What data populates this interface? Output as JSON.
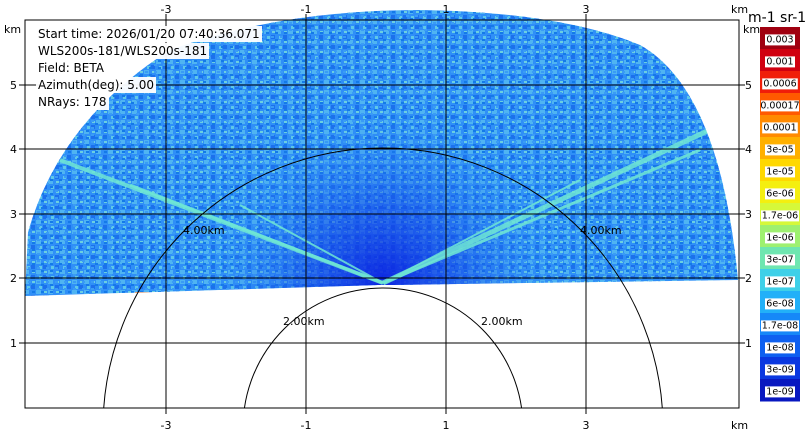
{
  "info": {
    "start_time": "Start time: 2026/01/20 07:40:36.071",
    "instrument": "WLS200s-181/WLS200s-181",
    "field": "Field: BETA",
    "azimuth": "Azimuth(deg): 5.00",
    "nrays": "NRays: 178"
  },
  "axes": {
    "x_unit": "km",
    "y_unit": "km",
    "x_ticks": [
      "-3",
      "-1",
      "1",
      "3"
    ],
    "y_ticks": [
      "1",
      "2",
      "3",
      "4",
      "5"
    ],
    "range_rings": [
      "2.00km",
      "4.00km"
    ]
  },
  "colorbar": {
    "unit_label": "m-1 sr-1",
    "labels": [
      "0.003",
      "0.001",
      "0.0006",
      "0.00017",
      "0.0001",
      "3e-05",
      "1e-05",
      "6e-06",
      "1.7e-06",
      "1e-06",
      "3e-07",
      "1e-07",
      "6e-08",
      "1.7e-08",
      "1e-08",
      "3e-09",
      "1e-09"
    ]
  }
}
